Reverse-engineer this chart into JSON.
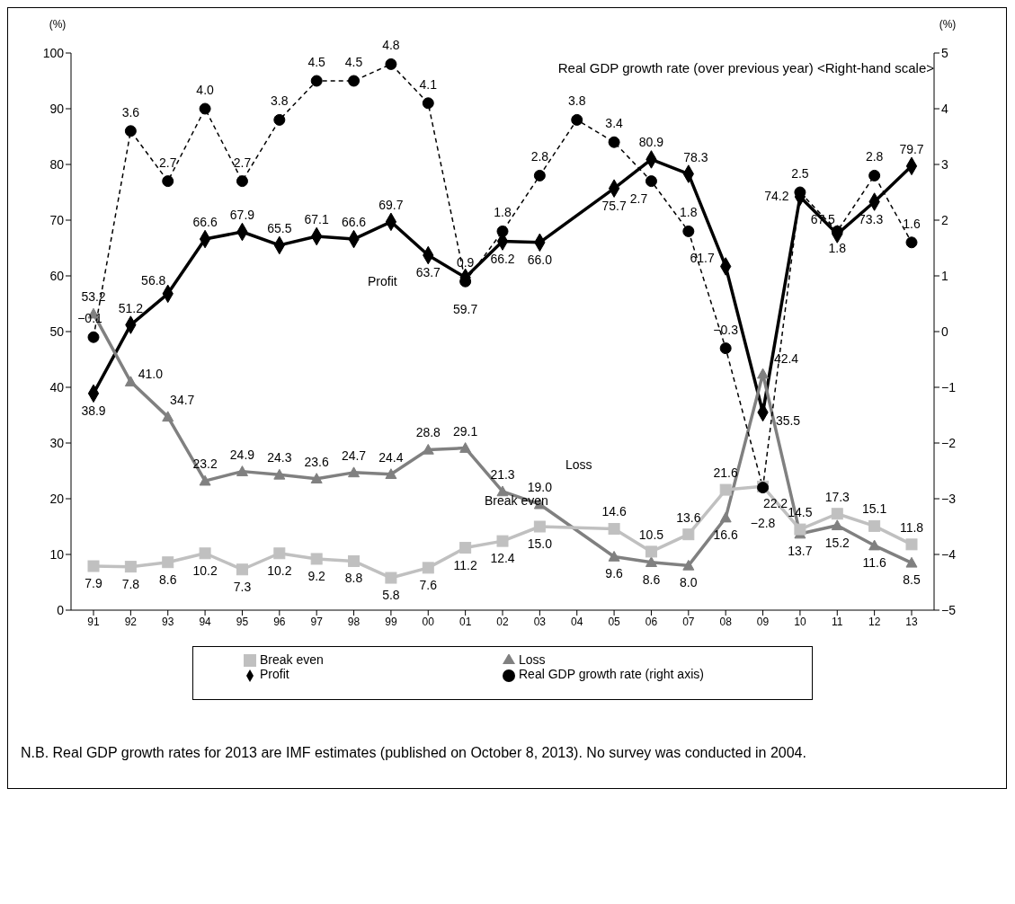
{
  "chart_data": {
    "type": "line",
    "ylabel": "(%)",
    "y2label": "(%)",
    "categories": [
      "91",
      "92",
      "93",
      "94",
      "95",
      "96",
      "97",
      "98",
      "99",
      "00",
      "01",
      "02",
      "03",
      "04",
      "05",
      "06",
      "07",
      "08",
      "09",
      "10",
      "11",
      "12",
      "13"
    ],
    "series": [
      {
        "name": "Profit",
        "color": "#000000",
        "marker": "diamond",
        "values": [
          38.9,
          51.2,
          56.8,
          66.6,
          67.9,
          65.5,
          67.1,
          66.6,
          69.7,
          63.7,
          59.7,
          66.2,
          66.0,
          null,
          75.7,
          80.9,
          78.3,
          61.7,
          35.5,
          74.2,
          67.5,
          73.3,
          79.7
        ],
        "value_labels": [
          "38.9",
          "51.2",
          "56.8",
          "66.6",
          "67.9",
          "65.5",
          "67.1",
          "66.6",
          "69.7",
          "63.7",
          "59.7",
          "66.2",
          "66.0",
          null,
          "75.7",
          "80.9",
          "78.3",
          "61.7",
          "35.5",
          "74.2",
          "67.5",
          "73.3",
          "79.7"
        ]
      },
      {
        "name": "Loss",
        "color": "#808080",
        "marker": "triangle",
        "values": [
          53.2,
          41.0,
          34.7,
          23.2,
          24.9,
          24.3,
          23.6,
          24.7,
          24.4,
          28.8,
          29.1,
          21.3,
          19.0,
          null,
          9.6,
          8.6,
          8.0,
          16.6,
          42.4,
          13.7,
          15.2,
          11.6,
          8.5
        ],
        "value_labels": [
          "53.2",
          "41.0",
          "34.7",
          "23.2",
          "24.9",
          "24.3",
          "23.6",
          "24.7",
          "24.4",
          "28.8",
          "29.1",
          "21.3",
          "19.0",
          null,
          "9.6",
          "8.6",
          "8.0",
          "16.6",
          "42.4",
          "13.7",
          "15.2",
          "11.6",
          "8.5"
        ]
      },
      {
        "name": "Break even",
        "color": "#c0c0c0",
        "marker": "square",
        "values": [
          7.9,
          7.8,
          8.6,
          10.2,
          7.3,
          10.2,
          9.2,
          8.8,
          5.8,
          7.6,
          11.2,
          12.4,
          15.0,
          null,
          14.6,
          10.5,
          13.6,
          21.6,
          22.2,
          14.5,
          17.3,
          15.1,
          11.8
        ],
        "value_labels": [
          "7.9",
          "7.8",
          "8.6",
          "10.2",
          "7.3",
          "10.2",
          "9.2",
          "8.8",
          "5.8",
          "7.6",
          "11.2",
          "12.4",
          "15.0",
          null,
          "14.6",
          "10.5",
          "13.6",
          "21.6",
          "22.2",
          "14.5",
          "17.3",
          "15.1",
          "11.8"
        ]
      },
      {
        "name": "Real GDP growth rate (right axis)",
        "color": "#000000",
        "marker": "circle",
        "line_style": "dashed",
        "axis": "y2",
        "values": [
          -0.1,
          3.6,
          2.7,
          4.0,
          2.7,
          3.8,
          4.5,
          4.5,
          4.8,
          4.1,
          0.9,
          1.8,
          2.8,
          3.8,
          3.4,
          2.7,
          1.8,
          -0.3,
          -2.8,
          2.5,
          1.8,
          2.8,
          1.6
        ],
        "value_labels": [
          "−0.1",
          "3.6",
          "2.7",
          "4.0",
          "2.7",
          "3.8",
          "4.5",
          "4.5",
          "4.8",
          "4.1",
          "0.9",
          "1.8",
          "2.8",
          "3.8",
          "3.4",
          "2.7",
          "1.8",
          "−0.3",
          "−2.8",
          "2.5",
          "1.8",
          "2.8",
          "1.6"
        ]
      }
    ],
    "ylim": [
      0,
      100
    ],
    "yticks": [
      0,
      10,
      20,
      30,
      40,
      50,
      60,
      70,
      80,
      90,
      100
    ],
    "y2lim": [
      -5,
      5
    ],
    "y2ticks": [
      {
        "value": -5,
        "label": "−5"
      },
      {
        "value": -4,
        "label": "−4"
      },
      {
        "value": -3,
        "label": "−3"
      },
      {
        "value": -2,
        "label": "−2"
      },
      {
        "value": -1,
        "label": "−1"
      },
      0,
      1,
      2,
      3,
      4,
      5
    ],
    "data_labels": true,
    "legend": "bottom",
    "annotations": [
      "Real GDP growth rate (over previous year) <Right-hand scale>",
      "Profit",
      "Loss",
      "Break even",
      "N.B. Real GDP growth rates for 2013 are IMF estimates (published on October 8, 2013). No survey was conducted in 2004."
    ]
  }
}
